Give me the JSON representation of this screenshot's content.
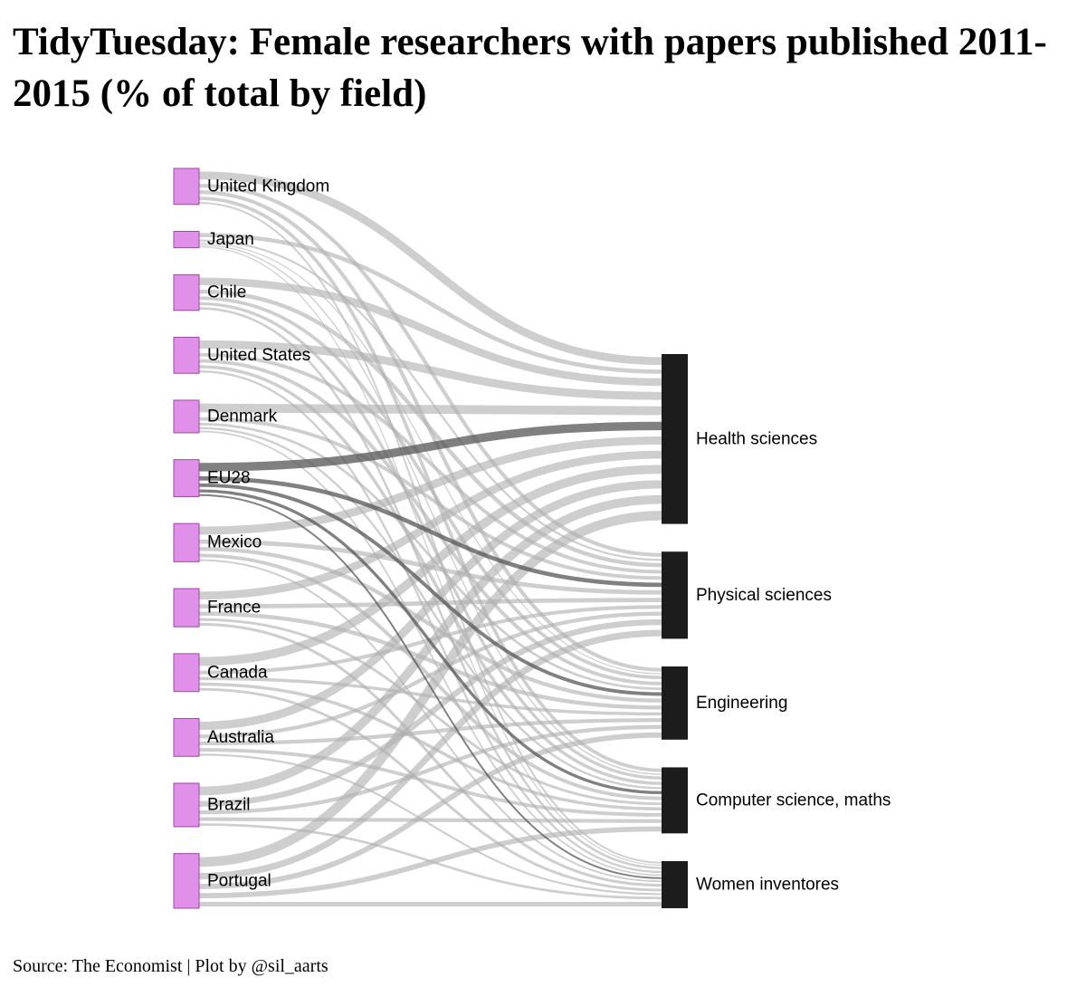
{
  "title": "TidyTuesday: Female researchers with papers published 2011-2015 (% of total by field)",
  "footer": "Source: The Economist | Plot by @sil_aarts",
  "colors": {
    "source_node": "#e090e8",
    "source_node_stroke": "#9a4aa0",
    "target_node": "#1c1c1c",
    "link": "#b0b0b0",
    "link_highlight": "#555555"
  },
  "chart_data": {
    "type": "sankey",
    "title": "TidyTuesday: Female researchers with papers published 2011-2015 (% of total by field)",
    "highlighted_source": "EU28",
    "sources": [
      "United Kingdom",
      "Japan",
      "Chile",
      "United States",
      "Denmark",
      "EU28",
      "Mexico",
      "France",
      "Canada",
      "Australia",
      "Brazil",
      "Portugal"
    ],
    "targets": [
      "Health sciences",
      "Physical sciences",
      "Engineering",
      "Computer science, maths",
      "Women inventores"
    ],
    "values": [
      [
        0.45,
        0.21,
        0.21,
        0.19,
        0.1
      ],
      [
        0.24,
        0.11,
        0.05,
        0.07,
        0.06
      ],
      [
        0.43,
        0.23,
        0.19,
        0.17,
        0.13
      ],
      [
        0.46,
        0.2,
        0.2,
        0.18,
        0.12
      ],
      [
        0.5,
        0.2,
        0.14,
        0.12,
        0.09
      ],
      [
        0.48,
        0.24,
        0.2,
        0.17,
        0.1
      ],
      [
        0.46,
        0.25,
        0.22,
        0.2,
        0.1
      ],
      [
        0.45,
        0.24,
        0.23,
        0.15,
        0.16
      ],
      [
        0.5,
        0.21,
        0.18,
        0.18,
        0.15
      ],
      [
        0.47,
        0.22,
        0.22,
        0.2,
        0.11
      ],
      [
        0.5,
        0.33,
        0.22,
        0.21,
        0.14
      ],
      [
        0.54,
        0.37,
        0.3,
        0.29,
        0.26
      ]
    ]
  }
}
